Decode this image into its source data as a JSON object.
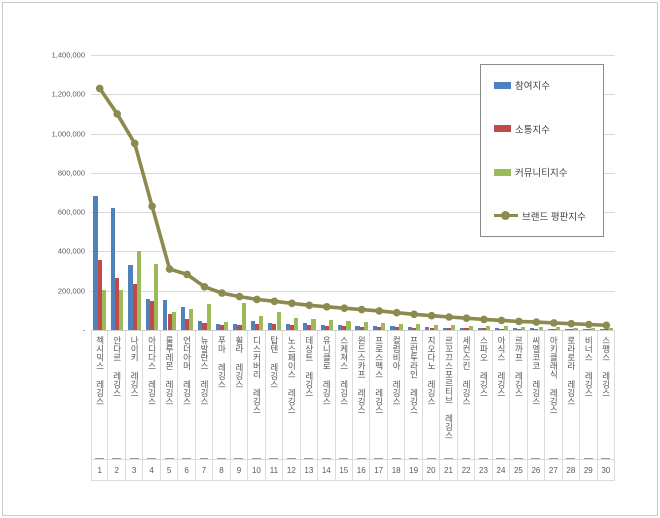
{
  "figure": {
    "background": "#ffffff",
    "frame_border_color": "#c9c9c9",
    "gridline_color": "#d9d9d9",
    "axis_text_color": "#595959"
  },
  "y_axis": {
    "tick_labels": [
      "1,400,000",
      "1,200,000",
      "1,000,000",
      "800,000",
      "600,000",
      "400,000",
      "200,000",
      "-"
    ],
    "min": 0,
    "max": 1400000,
    "step": 200000
  },
  "x_axis": {
    "ranks": [
      "1",
      "2",
      "3",
      "4",
      "5",
      "6",
      "7",
      "8",
      "9",
      "10",
      "11",
      "12",
      "13",
      "14",
      "15",
      "16",
      "17",
      "18",
      "19",
      "20",
      "21",
      "22",
      "23",
      "24",
      "25",
      "26",
      "27",
      "28",
      "29",
      "30"
    ]
  },
  "chart_data": {
    "type": "bar",
    "note": "grouped bar chart with overlaid line series",
    "title": "",
    "xlabel": "",
    "ylabel": "",
    "ylim": [
      0,
      1400000
    ],
    "grid": true,
    "legend_position": "upper right inside",
    "categories": [
      "젝시믹스 레깅스",
      "안다르 레깅스",
      "나이키 레깅스",
      "아디다스 레깅스",
      "룰루레몬 레깅스",
      "언더아머 레깅스",
      "뉴발란스 레깅스",
      "푸마 레깅스",
      "휠라 레깅스",
      "디스커버리 레깅스",
      "탑텐 레깅스",
      "노스페이스 레깅스",
      "데상트 레깅스",
      "유니클로 레깅스",
      "스케쳐스 레깅스",
      "윈드스카프 레깅스",
      "프로스펙스 레깅스",
      "컬럼비아 레깅스",
      "프런투라인 레깅스",
      "지오다노 레깅스",
      "르꼬끄스포르티브 레깅스",
      "세컨스킨 레깅스",
      "스파오 레깅스",
      "아식스 레깅스",
      "르까프 레깅스",
      "씨엘코코 레깅스",
      "아키클래식 레깅스",
      "로라로라 레깅스",
      "비너스 레깅스",
      "스팽스 레깅스"
    ],
    "series": [
      {
        "name": "참여지수",
        "type": "bar",
        "color": "#4F81BD",
        "values": [
          683000,
          622000,
          333000,
          160000,
          155000,
          116000,
          45000,
          30000,
          32000,
          48000,
          36000,
          30000,
          34000,
          28000,
          24000,
          20000,
          18000,
          20000,
          15000,
          14000,
          12000,
          12000,
          10000,
          10000,
          9000,
          8000,
          7000,
          6000,
          6000,
          5000
        ]
      },
      {
        "name": "소통지수",
        "type": "bar",
        "color": "#BE4B48",
        "values": [
          355000,
          266000,
          235000,
          150000,
          82000,
          55000,
          35000,
          27000,
          26000,
          30000,
          30000,
          24000,
          27000,
          21000,
          19000,
          15000,
          14000,
          15000,
          12000,
          11000,
          9000,
          9000,
          8000,
          7000,
          7000,
          6000,
          5000,
          5000,
          4000,
          4000
        ]
      },
      {
        "name": "커뮤니티지수",
        "type": "bar",
        "color": "#9BBB59",
        "values": [
          205000,
          205000,
          404000,
          338000,
          90000,
          106000,
          134000,
          40000,
          138000,
          73000,
          90000,
          60000,
          56000,
          50000,
          45000,
          40000,
          36000,
          30000,
          30000,
          26000,
          25000,
          22000,
          20000,
          18000,
          16000,
          15000,
          13000,
          12000,
          11000,
          10000
        ]
      },
      {
        "name": "브랜드 평판지수",
        "type": "line",
        "color": "#8C8A4E",
        "values": [
          1230000,
          1100000,
          950000,
          630000,
          310000,
          283000,
          220000,
          188000,
          170000,
          156000,
          146000,
          136000,
          126000,
          118000,
          111000,
          104000,
          97000,
          88000,
          80000,
          73000,
          66000,
          60000,
          54000,
          49000,
          44000,
          40000,
          36000,
          32000,
          28000,
          24000
        ]
      }
    ]
  }
}
